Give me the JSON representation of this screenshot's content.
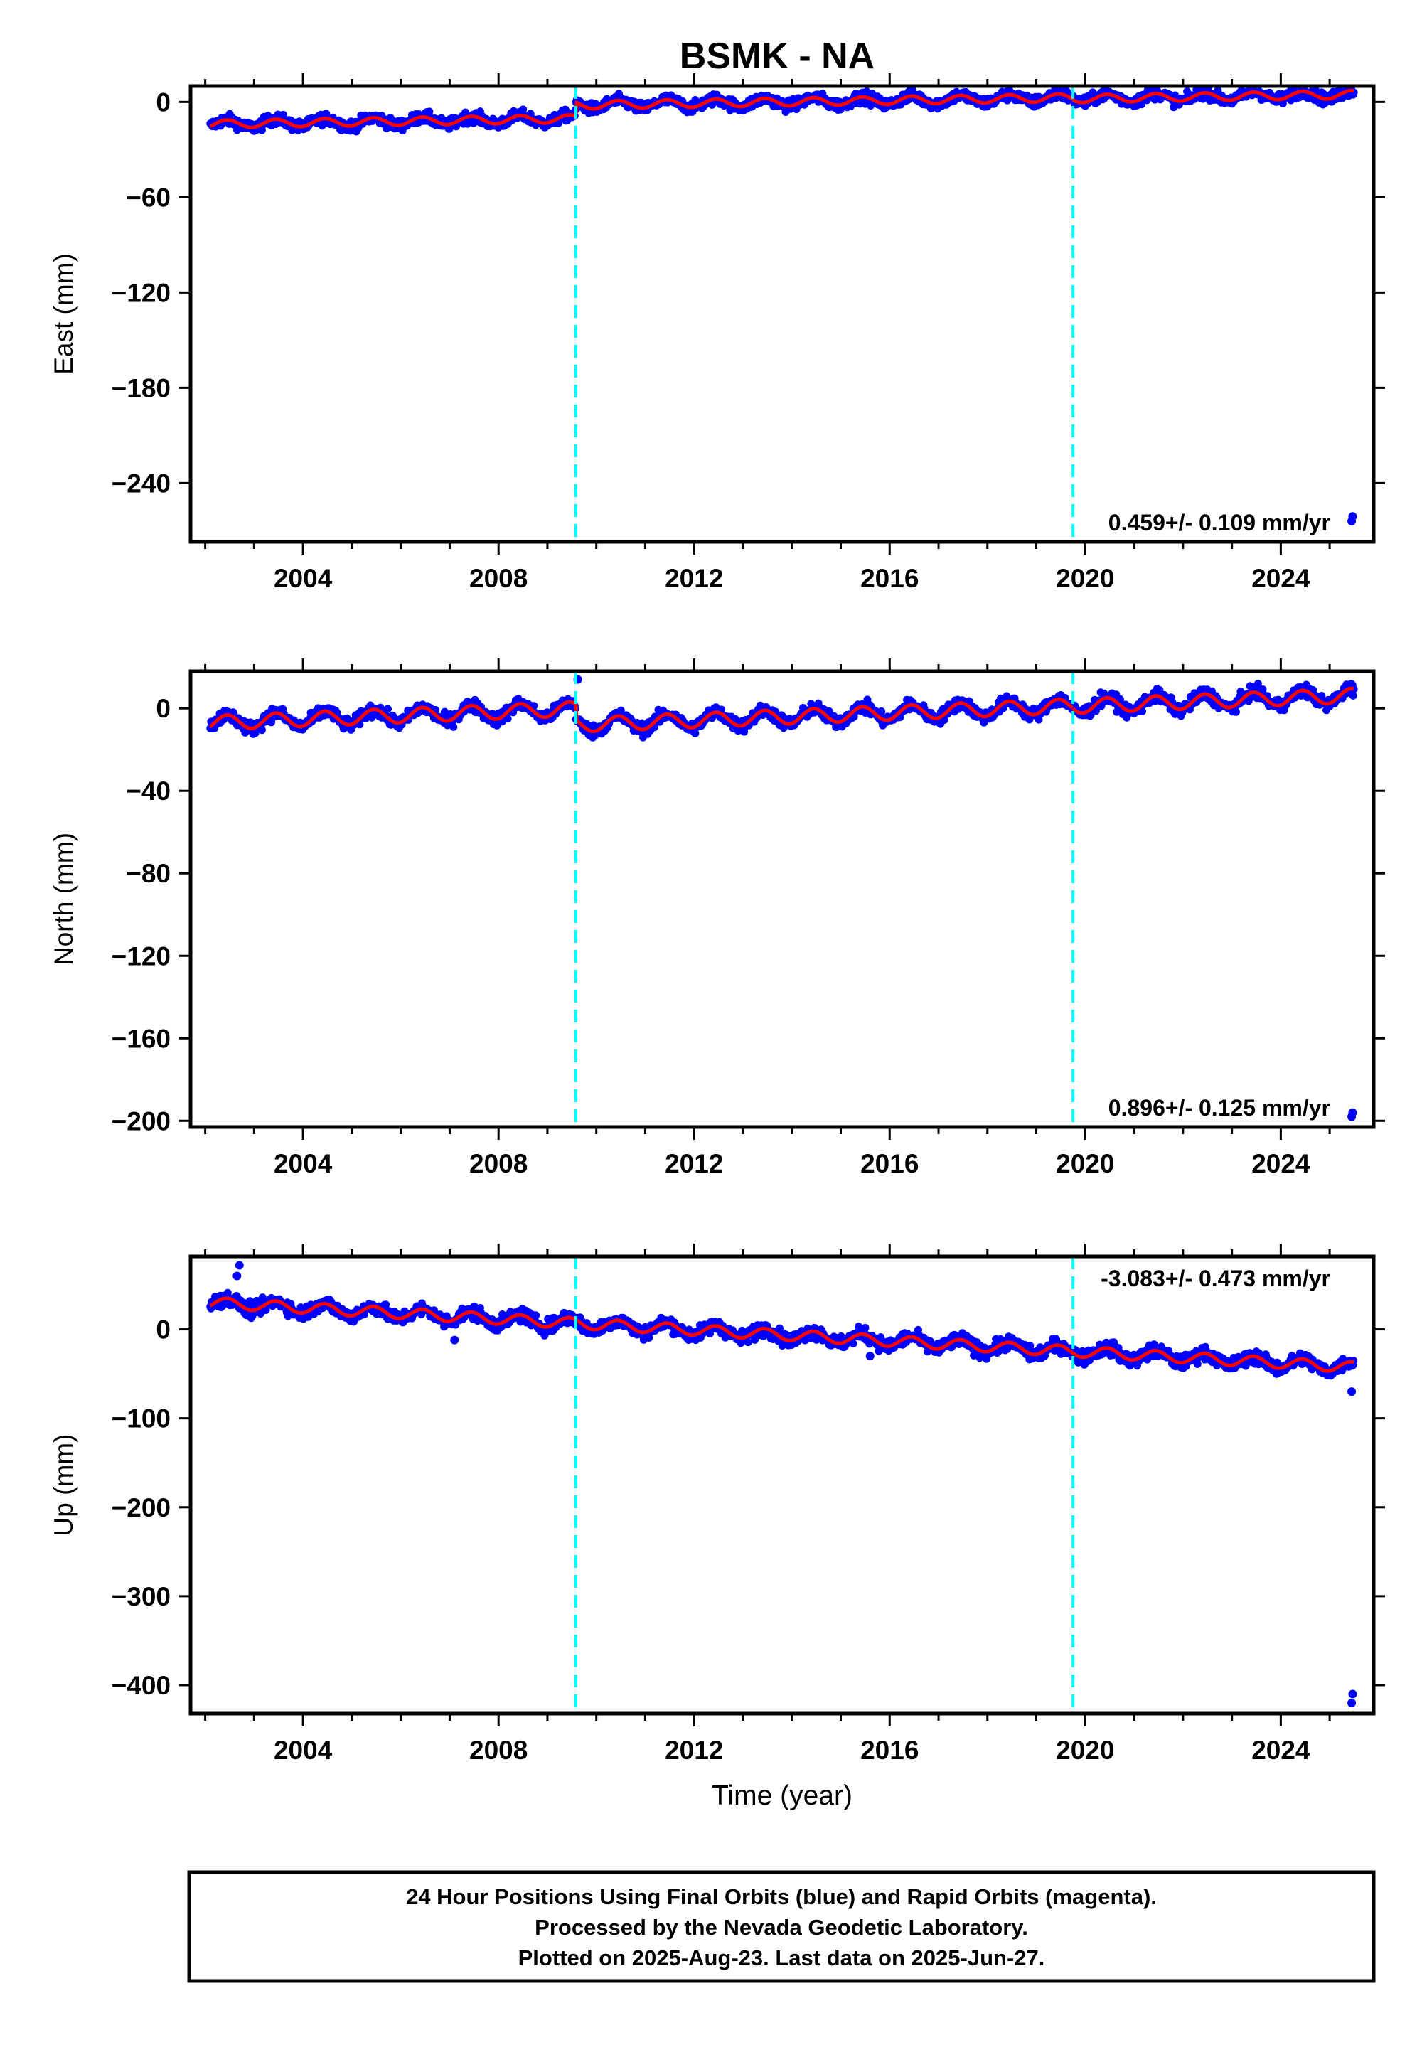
{
  "title": "BSMK - NA",
  "colors": {
    "final_orbits": "#0000ff",
    "rapid_orbits": "#ff00ff",
    "model": "#ff0000",
    "steps": "#00ffff",
    "frame": "#000000"
  },
  "chart_data": [
    {
      "type": "scatter",
      "name": "east",
      "ylabel": "East (mm)",
      "xlim": [
        2001.7,
        2025.9
      ],
      "ylim": [
        -277,
        10
      ],
      "yticks": [
        0,
        -60,
        -120,
        -180,
        -240
      ],
      "xticks": [
        2004,
        2008,
        2012,
        2016,
        2020,
        2024
      ],
      "rate_text": "0.459+/- 0.109 mm/yr",
      "step_epochs": [
        2009.58,
        2019.75
      ],
      "segments": [
        {
          "start": 2002.1,
          "end": 2009.58,
          "y0": -14,
          "slope": 0.46,
          "amp": 2.5
        },
        {
          "start": 2009.58,
          "end": 2019.75,
          "y0": -2,
          "slope": 0.46,
          "amp": 2.5
        },
        {
          "start": 2019.75,
          "end": 2025.5,
          "y0": 2,
          "slope": 0.46,
          "amp": 2.5
        }
      ],
      "noise": 2.5,
      "outliers": [
        {
          "x": 2025.45,
          "y": -264
        },
        {
          "x": 2025.47,
          "y": -261
        }
      ]
    },
    {
      "type": "scatter",
      "name": "north",
      "ylabel": "North (mm)",
      "xlim": [
        2001.7,
        2025.9
      ],
      "ylim": [
        -203,
        18
      ],
      "yticks": [
        0,
        -40,
        -80,
        -120,
        -160,
        -200
      ],
      "xticks": [
        2004,
        2008,
        2012,
        2016,
        2020,
        2024
      ],
      "rate_text": "0.896+/- 0.125 mm/yr",
      "step_epochs": [
        2009.58,
        2019.75
      ],
      "segments": [
        {
          "start": 2002.1,
          "end": 2009.58,
          "y0": -7,
          "slope": 0.9,
          "amp": 3.5
        },
        {
          "start": 2009.58,
          "end": 2019.75,
          "y0": -8,
          "slope": 0.9,
          "amp": 3.5
        },
        {
          "start": 2019.75,
          "end": 2025.5,
          "y0": 1,
          "slope": 0.9,
          "amp": 3.5
        }
      ],
      "noise": 2.2,
      "outliers": [
        {
          "x": 2009.62,
          "y": 14
        },
        {
          "x": 2025.45,
          "y": -198
        },
        {
          "x": 2025.47,
          "y": -196
        }
      ]
    },
    {
      "type": "scatter",
      "name": "up",
      "ylabel": "Up (mm)",
      "xlim": [
        2001.7,
        2025.9
      ],
      "ylim": [
        -432,
        82
      ],
      "yticks": [
        0,
        -100,
        -200,
        -300,
        -400
      ],
      "xticks": [
        2004,
        2008,
        2012,
        2016,
        2020,
        2024
      ],
      "xlabel": "Time (year)",
      "rate_text": "-3.083+/- 0.473 mm/yr",
      "step_epochs": [
        2009.58,
        2019.75
      ],
      "segments": [
        {
          "start": 2002.1,
          "end": 2025.5,
          "y0": 30,
          "slope": -3.1,
          "amp": 6
        }
      ],
      "noise": 5.5,
      "outliers": [
        {
          "x": 2002.7,
          "y": 72
        },
        {
          "x": 2002.65,
          "y": 60
        },
        {
          "x": 2007.1,
          "y": -12
        },
        {
          "x": 2015.6,
          "y": -30
        },
        {
          "x": 2025.45,
          "y": -70
        },
        {
          "x": 2025.45,
          "y": -420
        },
        {
          "x": 2025.47,
          "y": -410
        }
      ]
    }
  ],
  "footer": {
    "line1": "24 Hour Positions Using Final Orbits (blue) and Rapid Orbits (magenta).",
    "line2": "Processed by the Nevada Geodetic Laboratory.",
    "line3": "Plotted on 2025-Aug-23. Last data on 2025-Jun-27."
  }
}
